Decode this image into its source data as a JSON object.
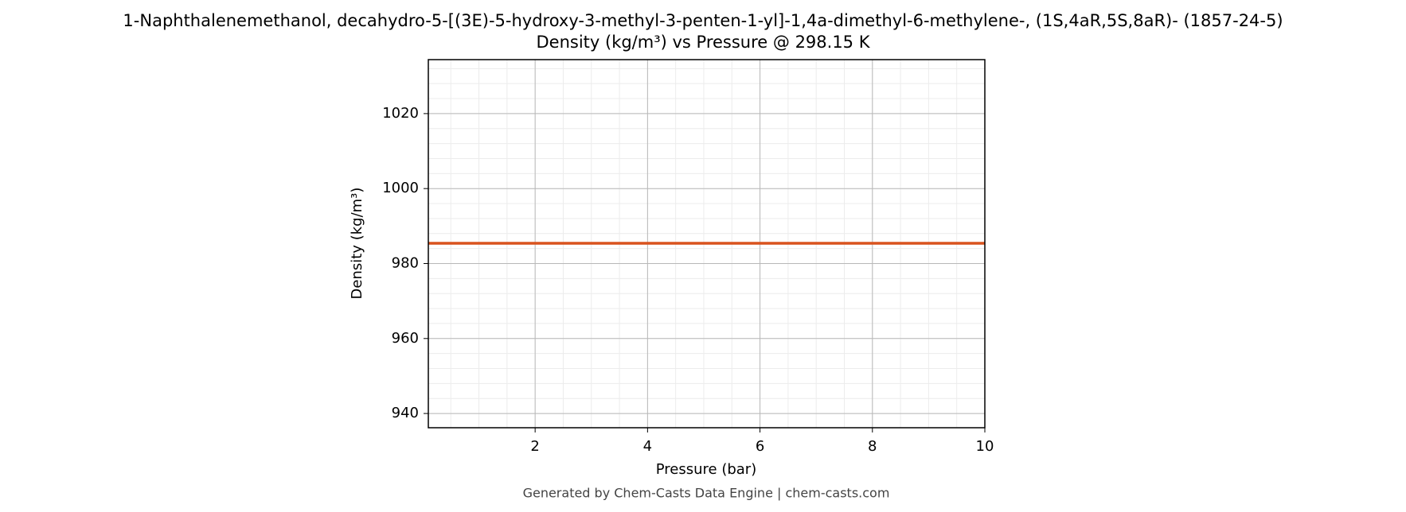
{
  "chart_data": {
    "type": "line",
    "title": "1-Naphthalenemethanol, decahydro-5-[(3E)-5-hydroxy-3-methyl-3-penten-1-yl]-1,4a-dimethyl-6-methylene-, (1S,4aR,5S,8aR)- (1857-24-5)",
    "subtitle": "Density (kg/m³) vs Pressure @ 298.15 K",
    "x_label": "Pressure (bar)",
    "y_label": "Density (kg/m³)",
    "x": [
      0.1,
      10
    ],
    "series": [
      {
        "name": "Density",
        "color": "#d9531e",
        "values": [
          985.4,
          985.4
        ]
      }
    ],
    "xlim": [
      0.1,
      10
    ],
    "xticks": [
      2,
      4,
      6,
      8,
      10
    ],
    "ylim": [
      936.2,
      1034.4
    ],
    "yticks": [
      940,
      960,
      980,
      1000,
      1020
    ],
    "grid": true,
    "footer": "Generated by Chem-Casts Data Engine | chem-casts.com"
  }
}
